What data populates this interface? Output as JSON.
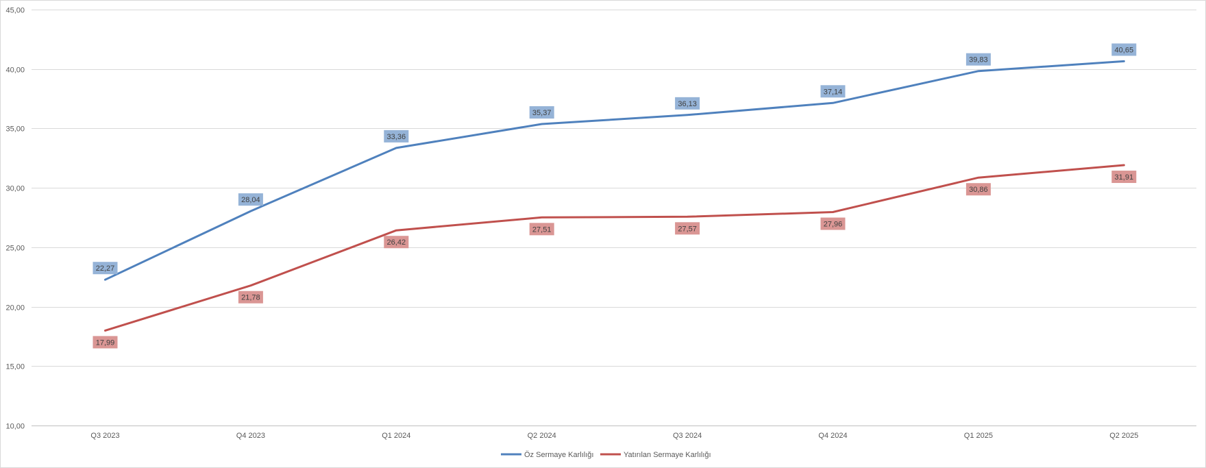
{
  "chart_data": {
    "type": "line",
    "title": "",
    "xlabel": "",
    "ylabel": "",
    "categories": [
      "Q3 2023",
      "Q4 2023",
      "Q1 2024",
      "Q2 2024",
      "Q3 2024",
      "Q4 2024",
      "Q1 2025",
      "Q2 2025"
    ],
    "ylim": [
      10,
      45
    ],
    "ytick_values": [
      10,
      15,
      20,
      25,
      30,
      35,
      40,
      45
    ],
    "ytick_labels": [
      "10,00",
      "15,00",
      "20,00",
      "25,00",
      "30,00",
      "35,00",
      "40,00",
      "45,00"
    ],
    "grid": true,
    "legend_position": "bottom",
    "series": [
      {
        "name": "Öz Sermaye Karlılığı",
        "color": "#4f81bd",
        "label_bg": "#95b3d7",
        "label_position": "above",
        "values": [
          22.27,
          28.04,
          33.36,
          35.37,
          36.13,
          37.14,
          39.83,
          40.65
        ],
        "labels": [
          "22,27",
          "28,04",
          "33,36",
          "35,37",
          "36,13",
          "37,14",
          "39,83",
          "40,65"
        ]
      },
      {
        "name": "Yatırılan Sermaye Karlılığı",
        "color": "#c0504d",
        "label_bg": "#da9694",
        "label_position": "below",
        "values": [
          17.99,
          21.78,
          26.42,
          27.51,
          27.57,
          27.96,
          30.86,
          31.91
        ],
        "labels": [
          "17,99",
          "21,78",
          "26,42",
          "27,51",
          "27,57",
          "27,96",
          "30,86",
          "31,91"
        ]
      }
    ]
  }
}
